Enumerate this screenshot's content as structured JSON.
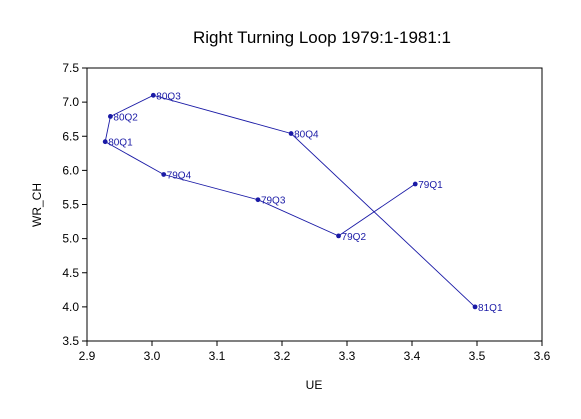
{
  "chart_data": {
    "type": "line",
    "title": "Right Turning Loop 1979:1-1981:1",
    "xlabel": "UE",
    "ylabel": "WR_CH",
    "xlim": [
      2.9,
      3.6
    ],
    "ylim": [
      3.5,
      7.5
    ],
    "x_ticks": [
      "2.9",
      "3.0",
      "3.1",
      "3.2",
      "3.3",
      "3.4",
      "3.5",
      "3.6"
    ],
    "y_ticks": [
      "3.5",
      "4.0",
      "4.5",
      "5.0",
      "5.5",
      "6.0",
      "6.5",
      "7.0",
      "7.5"
    ],
    "grid": false,
    "legend": "none",
    "color": "#1a1aa6",
    "series": [
      {
        "points": [
          {
            "label": "79Q1",
            "x": 3.405,
            "y": 5.8
          },
          {
            "label": "79Q2",
            "x": 3.287,
            "y": 5.04
          },
          {
            "label": "79Q3",
            "x": 3.163,
            "y": 5.57
          },
          {
            "label": "79Q4",
            "x": 3.018,
            "y": 5.94
          },
          {
            "label": "80Q1",
            "x": 2.928,
            "y": 6.42
          },
          {
            "label": "80Q2",
            "x": 2.936,
            "y": 6.79
          },
          {
            "label": "80Q3",
            "x": 3.002,
            "y": 7.1
          },
          {
            "label": "80Q4",
            "x": 3.214,
            "y": 6.54
          },
          {
            "label": "81Q1",
            "x": 3.497,
            "y": 4.0
          }
        ]
      }
    ]
  }
}
